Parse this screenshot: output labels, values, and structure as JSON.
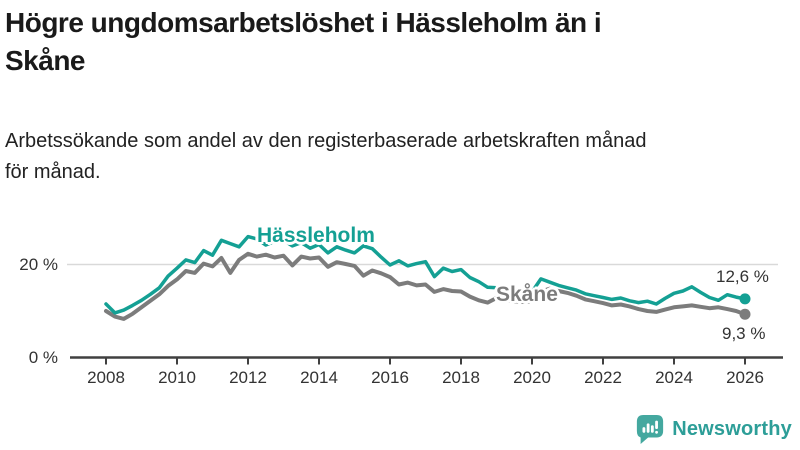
{
  "header": {
    "title_lines": [
      "Högre ungdomsarbetslöshet i Hässleholm än i",
      "Skåne"
    ],
    "subtitle_lines": [
      "Arbetssökande som andel av den registerbaserade arbetskraften månad",
      "för månad."
    ]
  },
  "chart_data": {
    "type": "line",
    "title": "Högre ungdomsarbetslöshet i Hässleholm än i Skåne",
    "subtitle": "Arbetssökande som andel av den registerbaserade arbetskraften månad för månad.",
    "unit": "%",
    "ylim": [
      0,
      28
    ],
    "y_ticks": [
      0,
      20
    ],
    "y_tick_labels": [
      "0 %",
      "20 %"
    ],
    "y_gridlines": [
      20
    ],
    "x_ticks": [
      2008,
      2010,
      2012,
      2014,
      2016,
      2018,
      2020,
      2022,
      2024,
      2026
    ],
    "x_tick_labels": [
      "2008",
      "2010",
      "2012",
      "2014",
      "2016",
      "2018",
      "2020",
      "2022",
      "2024",
      "2026"
    ],
    "legend_position": "inline-labels",
    "grid": "horizontal-only",
    "x": [
      2008,
      2008.25,
      2008.5,
      2008.75,
      2009,
      2009.25,
      2009.5,
      2009.75,
      2010,
      2010.25,
      2010.5,
      2010.75,
      2011,
      2011.25,
      2011.5,
      2011.75,
      2012,
      2012.25,
      2012.5,
      2012.75,
      2013,
      2013.25,
      2013.5,
      2013.75,
      2014,
      2014.25,
      2014.5,
      2014.75,
      2015,
      2015.25,
      2015.5,
      2015.75,
      2016,
      2016.25,
      2016.5,
      2016.75,
      2017,
      2017.25,
      2017.5,
      2017.75,
      2018,
      2018.25,
      2018.5,
      2018.75,
      2019,
      2019.25,
      2019.5,
      2019.75,
      2020,
      2020.25,
      2020.5,
      2020.75,
      2021,
      2021.25,
      2021.5,
      2021.75,
      2022,
      2022.25,
      2022.5,
      2022.75,
      2023,
      2023.25,
      2023.5,
      2023.75,
      2024,
      2024.25,
      2024.5,
      2024.75,
      2025,
      2025.25,
      2025.5,
      2025.75,
      2026
    ],
    "series": [
      {
        "name": "Hässleholm",
        "color": "#14a094",
        "end_label": "12,6 %",
        "end_value": 12.6,
        "values": [
          11.5,
          9.6,
          10.2,
          11.2,
          12.3,
          13.6,
          15.0,
          17.5,
          19.2,
          21.0,
          20.4,
          23.0,
          22.0,
          25.2,
          24.5,
          23.8,
          26.0,
          25.5,
          24.2,
          25.0,
          25.2,
          24.0,
          24.7,
          23.5,
          24.3,
          22.5,
          23.8,
          23.1,
          22.5,
          24.0,
          23.4,
          21.6,
          19.9,
          20.8,
          19.7,
          20.2,
          20.6,
          17.4,
          19.2,
          18.5,
          18.9,
          17.2,
          16.3,
          15.1,
          15.0,
          14.0,
          13.5,
          13.8,
          14.1,
          16.9,
          16.2,
          15.5,
          15.0,
          14.5,
          13.7,
          13.3,
          12.9,
          12.5,
          12.8,
          12.2,
          11.8,
          12.1,
          11.5,
          12.7,
          13.8,
          14.3,
          15.2,
          14.0,
          12.9,
          12.3,
          13.5,
          13.0,
          12.6
        ]
      },
      {
        "name": "Skåne",
        "color": "#7c7c7c",
        "end_label": "9,3 %",
        "end_value": 9.3,
        "values": [
          10.0,
          8.8,
          8.3,
          9.4,
          10.8,
          12.2,
          13.6,
          15.4,
          16.8,
          18.6,
          18.2,
          20.2,
          19.6,
          21.4,
          18.2,
          21.0,
          22.3,
          21.7,
          22.1,
          21.5,
          21.9,
          19.8,
          21.7,
          21.3,
          21.5,
          19.5,
          20.5,
          20.1,
          19.7,
          17.6,
          18.7,
          18.1,
          17.3,
          15.7,
          16.1,
          15.5,
          15.7,
          14.1,
          14.7,
          14.3,
          14.2,
          13.1,
          12.3,
          11.8,
          12.8,
          12.4,
          12.1,
          12.0,
          12.1,
          14.2,
          14.8,
          14.3,
          13.9,
          13.3,
          12.5,
          12.1,
          11.7,
          11.2,
          11.4,
          11.0,
          10.4,
          10.0,
          9.8,
          10.3,
          10.8,
          11.0,
          11.2,
          10.9,
          10.6,
          10.8,
          10.4,
          10.0,
          9.3
        ]
      }
    ]
  },
  "colors": {
    "hassleholm": "#14a094",
    "skane": "#7c7c7c",
    "axis": "#404040",
    "grid": "#d9d9d9",
    "brand": "#2d9e98"
  },
  "footer": {
    "brand": "Newsworthy"
  }
}
